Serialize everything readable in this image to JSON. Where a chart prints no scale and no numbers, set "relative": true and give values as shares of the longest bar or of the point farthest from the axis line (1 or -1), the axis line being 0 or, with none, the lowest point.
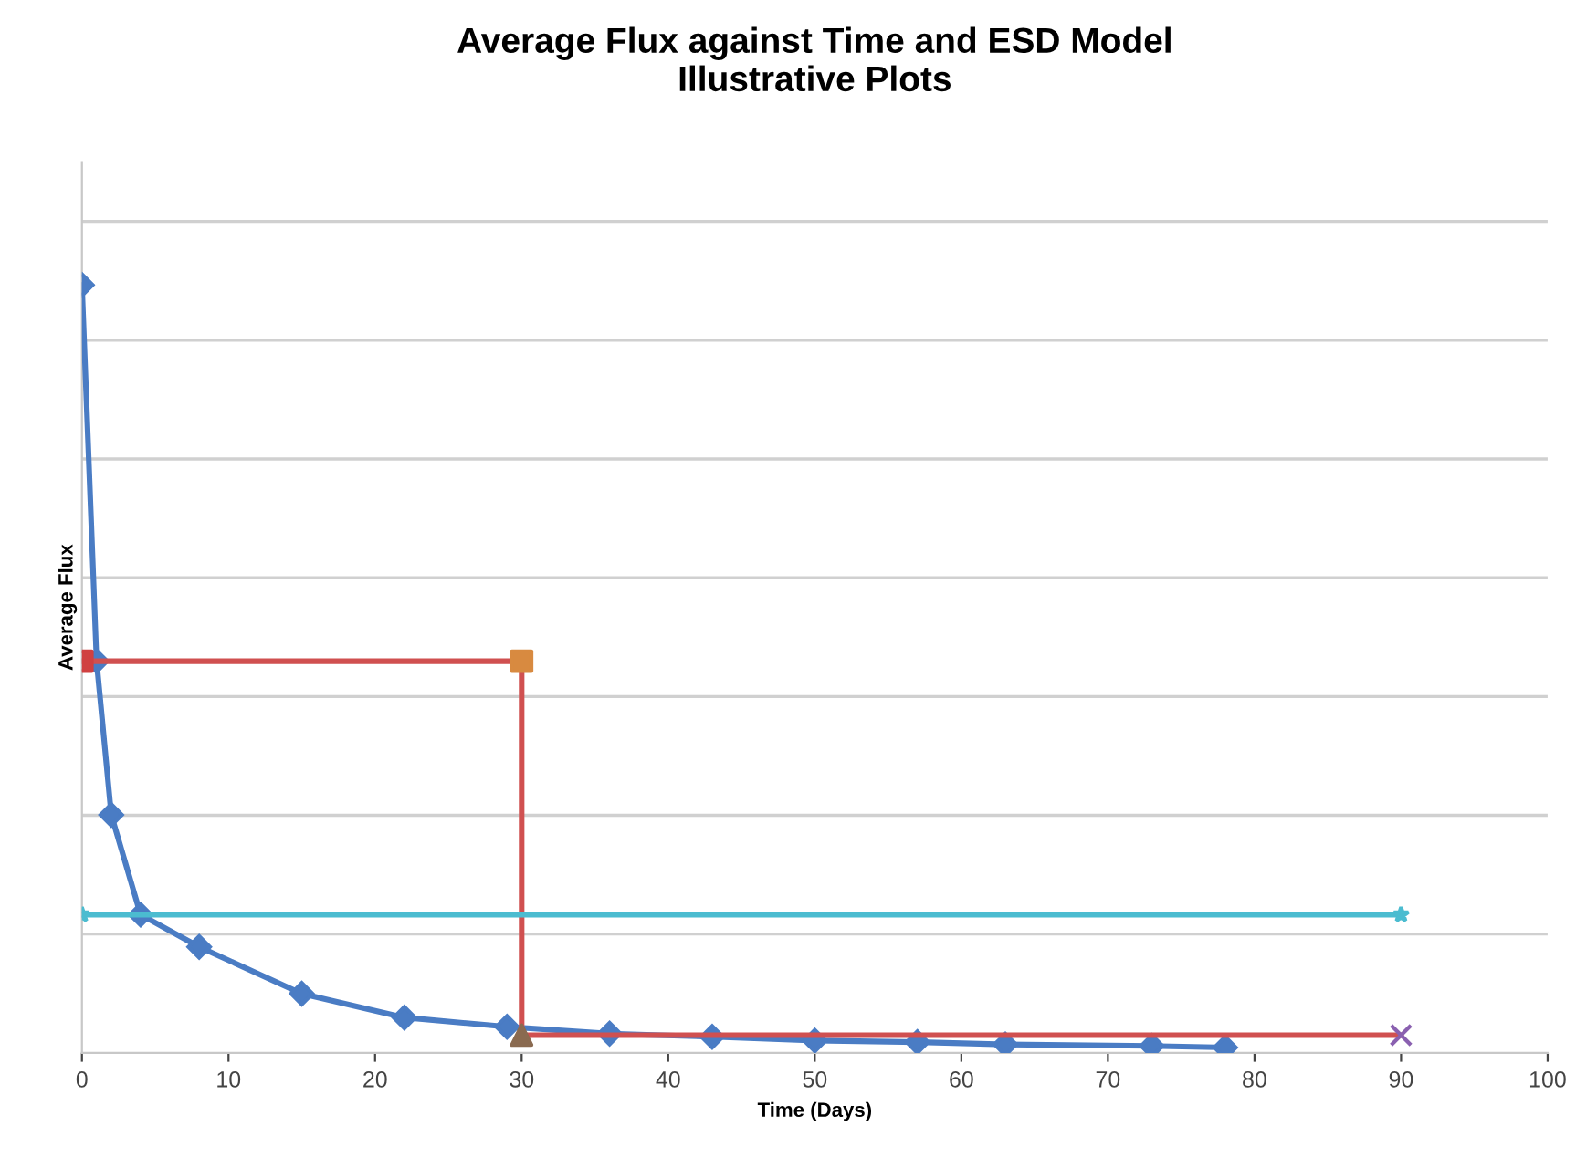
{
  "chart_data": {
    "type": "line",
    "title": "Average Flux against Time and ESD Model\nIllustrative Plots",
    "xlabel": "Time (Days)",
    "ylabel": "Average Flux",
    "relative": true,
    "xlim": [
      0,
      100
    ],
    "xticks": [
      0,
      10,
      20,
      30,
      40,
      50,
      60,
      70,
      80,
      90,
      100
    ],
    "grid": "y",
    "legend": false,
    "tick_labels": "x",
    "line_style": "solid",
    "series": [
      {
        "color": "#4a7cc4",
        "marker": "diamond",
        "x": [
          0,
          1,
          2,
          4,
          8,
          15,
          22,
          29,
          36,
          43,
          50,
          57,
          63,
          73,
          78
        ],
        "values": [
          1,
          0.51,
          0.31,
          0.18,
          0.138,
          0.077,
          0.046,
          0.034,
          0.025,
          0.021,
          0.016,
          0.014,
          0.011,
          0.009,
          0.007
        ]
      },
      {
        "color": "#d05050",
        "marker": "none",
        "x": [
          0,
          30,
          30,
          90
        ],
        "values": [
          0.51,
          0.51,
          0.023,
          0.023
        ]
      },
      {
        "color": "#4bbcd0",
        "marker": "star",
        "x": [
          0,
          90
        ],
        "values": [
          0.18,
          0.18
        ]
      },
      {
        "type": "scatter",
        "color": "#d04040",
        "marker": "square",
        "x": [
          0
        ],
        "values": [
          0.51
        ]
      },
      {
        "type": "scatter",
        "color": "#d88a40",
        "marker": "square",
        "x": [
          30
        ],
        "values": [
          0.51
        ]
      },
      {
        "type": "scatter",
        "color": "#8a6a50",
        "marker": "triangle",
        "x": [
          30
        ],
        "values": [
          0.023
        ]
      },
      {
        "type": "scatter",
        "color": "#8a60b0",
        "marker": "cross",
        "x": [
          90
        ],
        "values": [
          0.023
        ]
      }
    ]
  }
}
